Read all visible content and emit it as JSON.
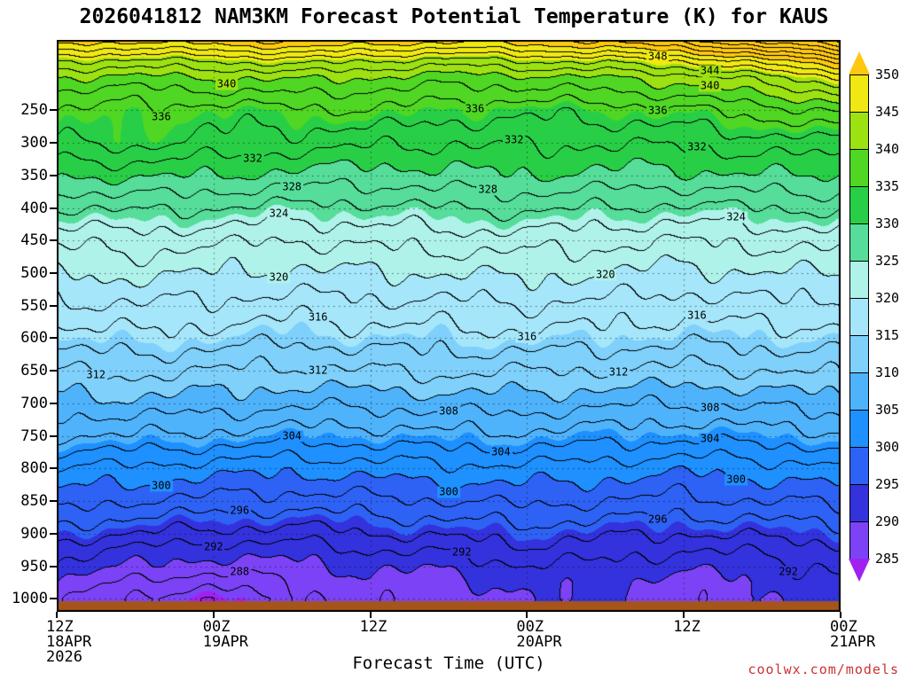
{
  "title": "2026041812 NAM3KM Forecast Potential Temperature (K) for KAUS",
  "xlabel": "Forecast Time (UTC)",
  "watermark": "coolwx.com/models",
  "colors": {
    "background": "#ffffff",
    "ground": "#a5551b",
    "contour_line": "#000000",
    "watermark": "#cc3333",
    "palette": [
      "#a122f0",
      "#7b43f5",
      "#3332dd",
      "#2e62f5",
      "#1e90ff",
      "#4fb3fc",
      "#7fd0fa",
      "#a5e6fa",
      "#aff2ea",
      "#55dd99",
      "#28cf46",
      "#4fd723",
      "#9ce112",
      "#efe812",
      "#ffc810"
    ]
  },
  "chart_data": {
    "type": "heatmap",
    "title": "2026041812 NAM3KM Forecast Potential Temperature (K) for KAUS",
    "xlabel": "Forecast Time (UTC)",
    "legend_position": "right",
    "grid": "dotted",
    "x_hours": [
      0,
      6,
      12,
      18,
      24,
      30,
      36,
      42,
      48,
      54,
      60
    ],
    "y_range_hpa": [
      142,
      1020
    ],
    "ground_top_hpa": 1004,
    "pressure_levels_hpa": [
      140,
      150,
      175,
      200,
      225,
      250,
      300,
      350,
      400,
      450,
      500,
      550,
      600,
      650,
      700,
      750,
      800,
      850,
      900,
      925,
      950,
      975,
      1000,
      1020
    ],
    "theta_K": [
      [
        352,
        351,
        352,
        353,
        352,
        351,
        352,
        353,
        356,
        360,
        363
      ],
      [
        350,
        349,
        350,
        351,
        350,
        349,
        350,
        351,
        353,
        357,
        360
      ],
      [
        344,
        343.5,
        344,
        345,
        344,
        343,
        344,
        344.5,
        346,
        349,
        352
      ],
      [
        340,
        339.5,
        340,
        340.5,
        340,
        339,
        339.5,
        340,
        341,
        343,
        346
      ],
      [
        337.5,
        337,
        337.5,
        338,
        337.5,
        337,
        337,
        337.5,
        338.5,
        340,
        342
      ],
      [
        336,
        335.5,
        335,
        335.5,
        336,
        335,
        334.5,
        335,
        335.5,
        337,
        338.5
      ],
      [
        334,
        334.5,
        333.5,
        333,
        332.5,
        332,
        332.5,
        332,
        332.5,
        333,
        333.5
      ],
      [
        330,
        330.5,
        330,
        329.5,
        329,
        329.5,
        330,
        329.5,
        329.5,
        330,
        330
      ],
      [
        326,
        326.5,
        326,
        325.5,
        325.5,
        326,
        326.5,
        326,
        325.5,
        326,
        326.5
      ],
      [
        322.5,
        323,
        322.5,
        322,
        322.5,
        323,
        323,
        322.5,
        322,
        322.5,
        323
      ],
      [
        320,
        320.5,
        320,
        319.5,
        320,
        320,
        320.5,
        320,
        319.5,
        320,
        320
      ],
      [
        317.5,
        318,
        317.5,
        317,
        317.5,
        317.5,
        318,
        317.5,
        317,
        317.5,
        317.5
      ],
      [
        315,
        315.5,
        315,
        314.5,
        315,
        315,
        315.5,
        315,
        314.5,
        315,
        315
      ],
      [
        312,
        312.5,
        312,
        311.5,
        312,
        312.5,
        312,
        312,
        311.5,
        312,
        312.5
      ],
      [
        309,
        309.5,
        309,
        308.5,
        308.5,
        309,
        309,
        308.5,
        308,
        308.5,
        309
      ],
      [
        306,
        306,
        305.5,
        305,
        305,
        305.5,
        305.5,
        305,
        304.5,
        305,
        305.5
      ],
      [
        302,
        301.5,
        301,
        300.5,
        301,
        301.5,
        301.5,
        301,
        300.5,
        301,
        301.5
      ],
      [
        299,
        298,
        297.5,
        297,
        297.5,
        298,
        298.5,
        298,
        297.5,
        298,
        298.5
      ],
      [
        295,
        294,
        293.5,
        293,
        294,
        294.5,
        295,
        294.5,
        294,
        294.5,
        295
      ],
      [
        293,
        291.5,
        291,
        291,
        292,
        292.5,
        293.5,
        293,
        292,
        292.5,
        293.5
      ],
      [
        291.5,
        290,
        289,
        289.5,
        290.5,
        290.5,
        292,
        291.5,
        290.5,
        291,
        292.5
      ],
      [
        290,
        287.5,
        286.5,
        288,
        289.5,
        289,
        291,
        290.5,
        289,
        290,
        292
      ],
      [
        289,
        285.5,
        284.5,
        287,
        289,
        288,
        290.5,
        290,
        288.5,
        289.5,
        291.5
      ],
      [
        289,
        285.5,
        284.5,
        287,
        289,
        288,
        290.5,
        290,
        288.5,
        289.5,
        291.5
      ]
    ],
    "fill_levels": [
      285,
      290,
      295,
      300,
      305,
      310,
      315,
      320,
      325,
      330,
      335,
      340,
      345,
      350
    ],
    "fill_interval_K": 5,
    "line_interval_K": 2,
    "y_ticks_hpa": [
      250,
      300,
      350,
      400,
      450,
      500,
      550,
      600,
      650,
      700,
      750,
      800,
      850,
      900,
      950,
      1000
    ],
    "x_ticks": [
      {
        "hour": 0,
        "line1": "12Z",
        "line2": "18APR",
        "line3": "2026"
      },
      {
        "hour": 12,
        "line1": "00Z",
        "line2": "19APR"
      },
      {
        "hour": 24,
        "line1": "12Z"
      },
      {
        "hour": 36,
        "line1": "00Z",
        "line2": "20APR"
      },
      {
        "hour": 48,
        "line1": "12Z"
      },
      {
        "hour": 60,
        "line1": "00Z",
        "line2": "21APR"
      }
    ],
    "contour_labels": [
      {
        "value": 348,
        "hour": 46
      },
      {
        "value": 344,
        "hour": 50
      },
      {
        "value": 340,
        "hour": 13
      },
      {
        "value": 340,
        "hour": 50
      },
      {
        "value": 336,
        "hour": 8
      },
      {
        "value": 336,
        "hour": 32
      },
      {
        "value": 336,
        "hour": 46
      },
      {
        "value": 332,
        "hour": 15
      },
      {
        "value": 332,
        "hour": 35
      },
      {
        "value": 332,
        "hour": 49
      },
      {
        "value": 328,
        "hour": 18
      },
      {
        "value": 328,
        "hour": 33
      },
      {
        "value": 324,
        "hour": 17
      },
      {
        "value": 324,
        "hour": 52
      },
      {
        "value": 320,
        "hour": 17
      },
      {
        "value": 320,
        "hour": 42
      },
      {
        "value": 316,
        "hour": 20
      },
      {
        "value": 316,
        "hour": 36
      },
      {
        "value": 316,
        "hour": 49
      },
      {
        "value": 312,
        "hour": 3
      },
      {
        "value": 312,
        "hour": 20
      },
      {
        "value": 312,
        "hour": 43
      },
      {
        "value": 308,
        "hour": 30
      },
      {
        "value": 308,
        "hour": 50
      },
      {
        "value": 304,
        "hour": 18
      },
      {
        "value": 304,
        "hour": 34
      },
      {
        "value": 304,
        "hour": 50
      },
      {
        "value": 300,
        "hour": 8
      },
      {
        "value": 300,
        "hour": 30
      },
      {
        "value": 300,
        "hour": 52
      },
      {
        "value": 296,
        "hour": 14
      },
      {
        "value": 296,
        "hour": 46
      },
      {
        "value": 292,
        "hour": 12
      },
      {
        "value": 292,
        "hour": 31
      },
      {
        "value": 292,
        "hour": 56
      },
      {
        "value": 288,
        "hour": 14
      }
    ]
  }
}
